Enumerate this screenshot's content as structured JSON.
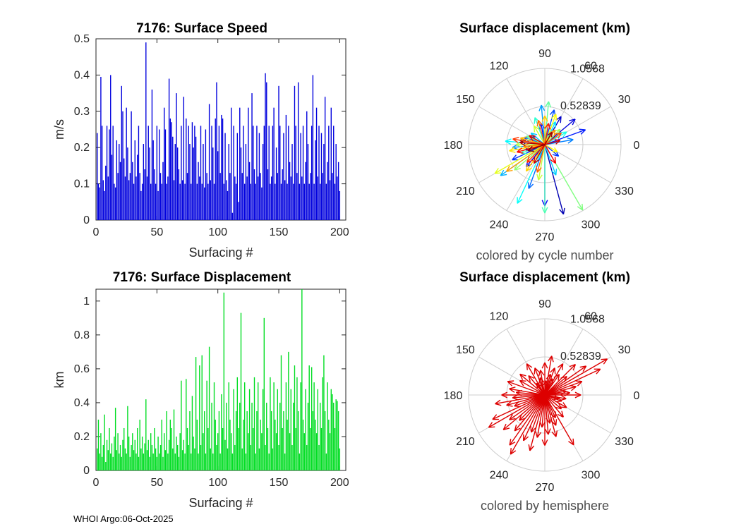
{
  "figure": {
    "background": "#ffffff"
  },
  "footer": {
    "text": "WHOI Argo:06-Oct-2025"
  },
  "chart_data": [
    {
      "type": "bar",
      "title": "7176: Surface Speed",
      "xlabel": "Surfacing #",
      "ylabel": "m/s",
      "bar_color": "#0000dd",
      "xlim": [
        0,
        205
      ],
      "ylim": [
        0,
        0.5
      ],
      "xticks": [
        0,
        50,
        100,
        150,
        200
      ],
      "yticks": [
        0,
        0.1,
        0.2,
        0.3,
        0.4,
        0.5
      ],
      "grid": false,
      "values": [
        0.24,
        0.1,
        0.09,
        0.395,
        0.26,
        0.11,
        0.08,
        0.15,
        0.26,
        0.12,
        0.25,
        0.4,
        0.18,
        0.26,
        0.1,
        0.09,
        0.22,
        0.13,
        0.21,
        0.16,
        0.37,
        0.3,
        0.17,
        0.12,
        0.31,
        0.2,
        0.11,
        0.13,
        0.3,
        0.16,
        0.1,
        0.22,
        0.12,
        0.18,
        0.26,
        0.13,
        0.08,
        0.1,
        0.21,
        0.14,
        0.49,
        0.12,
        0.26,
        0.2,
        0.1,
        0.36,
        0.22,
        0.14,
        0.1,
        0.26,
        0.08,
        0.25,
        0.13,
        0.1,
        0.16,
        0.31,
        0.25,
        0.1,
        0.12,
        0.39,
        0.28,
        0.27,
        0.23,
        0.11,
        0.21,
        0.35,
        0.2,
        0.14,
        0.1,
        0.26,
        0.11,
        0.34,
        0.1,
        0.28,
        0.13,
        0.26,
        0.21,
        0.1,
        0.27,
        0.2,
        0.26,
        0.23,
        0.1,
        0.16,
        0.12,
        0.26,
        0.1,
        0.21,
        0.09,
        0.25,
        0.13,
        0.1,
        0.32,
        0.11,
        0.26,
        0.2,
        0.1,
        0.28,
        0.38,
        0.19,
        0.26,
        0.13,
        0.29,
        0.28,
        0.1,
        0.24,
        0.11,
        0.08,
        0.21,
        0.13,
        0.31,
        0.02,
        0.26,
        0.12,
        0.1,
        0.24,
        0.05,
        0.31,
        0.2,
        0.13,
        0.26,
        0.1,
        0.21,
        0.12,
        0.31,
        0.16,
        0.1,
        0.35,
        0.26,
        0.14,
        0.1,
        0.26,
        0.12,
        0.24,
        0.13,
        0.09,
        0.21,
        0.26,
        0.405,
        0.38,
        0.14,
        0.26,
        0.1,
        0.12,
        0.26,
        0.31,
        0.1,
        0.2,
        0.13,
        0.37,
        0.26,
        0.1,
        0.14,
        0.24,
        0.11,
        0.29,
        0.1,
        0.26,
        0.16,
        0.12,
        0.21,
        0.1,
        0.37,
        0.26,
        0.13,
        0.38,
        0.1,
        0.24,
        0.12,
        0.26,
        0.1,
        0.16,
        0.3,
        0.21,
        0.1,
        0.13,
        0.26,
        0.4,
        0.1,
        0.22,
        0.31,
        0.12,
        0.26,
        0.1,
        0.24,
        0.13,
        0.21,
        0.34,
        0.1,
        0.16,
        0.26,
        0.11,
        0.31,
        0.13,
        0.26,
        0.1,
        0.21,
        0.12,
        0.16,
        0.08
      ]
    },
    {
      "type": "polar-quiver",
      "title": "Surface displacement (km)",
      "caption": "colored by cycle number",
      "colormap": "jet",
      "rmax": 1.0568,
      "rticks": [
        0.52839,
        1.0568
      ],
      "rtick_labels": [
        "0.52839",
        "1.0568"
      ],
      "angle_ticks": [
        0,
        30,
        60,
        90,
        120,
        150,
        180,
        210,
        240,
        270,
        300,
        330
      ],
      "arrows": [
        {
          "t": 0.0,
          "a": 170,
          "r": 0.35
        },
        {
          "t": 0.02,
          "a": 195,
          "r": 0.28
        },
        {
          "t": 0.04,
          "a": 150,
          "r": 0.22
        },
        {
          "t": 0.05,
          "a": 285,
          "r": 1.0
        },
        {
          "t": 0.07,
          "a": 60,
          "r": 0.45
        },
        {
          "t": 0.09,
          "a": 40,
          "r": 0.55
        },
        {
          "t": 0.1,
          "a": 230,
          "r": 0.4
        },
        {
          "t": 0.12,
          "a": 270,
          "r": 0.85
        },
        {
          "t": 0.13,
          "a": 100,
          "r": 0.3
        },
        {
          "t": 0.15,
          "a": 20,
          "r": 0.6
        },
        {
          "t": 0.17,
          "a": 205,
          "r": 0.5
        },
        {
          "t": 0.18,
          "a": 320,
          "r": 0.25
        },
        {
          "t": 0.2,
          "a": 75,
          "r": 0.5
        },
        {
          "t": 0.22,
          "a": 160,
          "r": 0.3
        },
        {
          "t": 0.23,
          "a": 250,
          "r": 0.65
        },
        {
          "t": 0.25,
          "a": 10,
          "r": 0.4
        },
        {
          "t": 0.27,
          "a": 185,
          "r": 0.45
        },
        {
          "t": 0.28,
          "a": 95,
          "r": 0.55
        },
        {
          "t": 0.3,
          "a": 215,
          "r": 0.75
        },
        {
          "t": 0.32,
          "a": 140,
          "r": 0.25
        },
        {
          "t": 0.33,
          "a": 290,
          "r": 0.45
        },
        {
          "t": 0.35,
          "a": 65,
          "r": 0.35
        },
        {
          "t": 0.37,
          "a": 175,
          "r": 0.55
        },
        {
          "t": 0.38,
          "a": 245,
          "r": 0.9
        },
        {
          "t": 0.4,
          "a": 30,
          "r": 0.35
        },
        {
          "t": 0.42,
          "a": 110,
          "r": 0.4
        },
        {
          "t": 0.43,
          "a": 200,
          "r": 0.35
        },
        {
          "t": 0.45,
          "a": 270,
          "r": 0.95
        },
        {
          "t": 0.47,
          "a": 85,
          "r": 0.6
        },
        {
          "t": 0.48,
          "a": 155,
          "r": 0.28
        },
        {
          "t": 0.5,
          "a": 300,
          "r": 1.05
        },
        {
          "t": 0.52,
          "a": 220,
          "r": 0.55
        },
        {
          "t": 0.53,
          "a": 45,
          "r": 0.3
        },
        {
          "t": 0.55,
          "a": 180,
          "r": 0.4
        },
        {
          "t": 0.57,
          "a": 260,
          "r": 0.5
        },
        {
          "t": 0.58,
          "a": 120,
          "r": 0.3
        },
        {
          "t": 0.6,
          "a": 210,
          "r": 0.8
        },
        {
          "t": 0.62,
          "a": 70,
          "r": 0.45
        },
        {
          "t": 0.63,
          "a": 330,
          "r": 0.2
        },
        {
          "t": 0.65,
          "a": 190,
          "r": 0.5
        },
        {
          "t": 0.67,
          "a": 235,
          "r": 0.45
        },
        {
          "t": 0.68,
          "a": 90,
          "r": 0.4
        },
        {
          "t": 0.7,
          "a": 165,
          "r": 0.35
        },
        {
          "t": 0.72,
          "a": 215,
          "r": 0.65
        },
        {
          "t": 0.73,
          "a": 55,
          "r": 0.25
        },
        {
          "t": 0.75,
          "a": 185,
          "r": 0.3
        },
        {
          "t": 0.77,
          "a": 105,
          "r": 0.35
        },
        {
          "t": 0.78,
          "a": 255,
          "r": 0.4
        },
        {
          "t": 0.8,
          "a": 35,
          "r": 0.28
        },
        {
          "t": 0.82,
          "a": 170,
          "r": 0.45
        },
        {
          "t": 0.83,
          "a": 225,
          "r": 0.35
        },
        {
          "t": 0.85,
          "a": 80,
          "r": 0.3
        },
        {
          "t": 0.87,
          "a": 195,
          "r": 0.4
        },
        {
          "t": 0.88,
          "a": 300,
          "r": 0.3
        },
        {
          "t": 0.9,
          "a": 150,
          "r": 0.25
        },
        {
          "t": 0.92,
          "a": 15,
          "r": 0.22
        },
        {
          "t": 0.93,
          "a": 240,
          "r": 0.3
        },
        {
          "t": 0.95,
          "a": 175,
          "r": 0.35
        },
        {
          "t": 0.97,
          "a": 60,
          "r": 0.2
        },
        {
          "t": 1.0,
          "a": 200,
          "r": 0.25
        }
      ]
    },
    {
      "type": "bar",
      "title": "7176: Surface Displacement",
      "xlabel": "Surfacing #",
      "ylabel": "km",
      "bar_color": "#00dd22",
      "xlim": [
        0,
        205
      ],
      "ylim": [
        0,
        1.07
      ],
      "xticks": [
        0,
        50,
        100,
        150,
        200
      ],
      "yticks": [
        0,
        0.2,
        0.4,
        0.6,
        0.8,
        1
      ],
      "grid": false,
      "values": [
        0.13,
        0.3,
        0.1,
        0.22,
        0.08,
        0.15,
        0.33,
        0.05,
        0.18,
        0.12,
        0.25,
        0.1,
        0.16,
        0.08,
        0.2,
        0.37,
        0.12,
        0.22,
        0.1,
        0.15,
        0.08,
        0.18,
        0.25,
        0.13,
        0.1,
        0.38,
        0.2,
        0.08,
        0.15,
        0.22,
        0.12,
        0.18,
        0.1,
        0.25,
        0.08,
        0.3,
        0.13,
        0.2,
        0.1,
        0.16,
        0.42,
        0.12,
        0.18,
        0.08,
        0.22,
        0.15,
        0.1,
        0.25,
        0.13,
        0.08,
        0.2,
        0.1,
        0.15,
        0.3,
        0.08,
        0.22,
        0.12,
        0.35,
        0.1,
        0.18,
        0.3,
        0.25,
        0.13,
        0.36,
        0.1,
        0.2,
        0.15,
        0.08,
        0.22,
        0.53,
        0.12,
        0.18,
        0.1,
        0.54,
        0.25,
        0.15,
        0.35,
        0.1,
        0.44,
        0.2,
        0.13,
        0.67,
        0.3,
        0.1,
        0.62,
        0.15,
        0.68,
        0.22,
        0.35,
        0.1,
        0.53,
        0.25,
        0.73,
        0.13,
        0.4,
        0.1,
        0.52,
        0.3,
        0.15,
        0.22,
        0.35,
        0.1,
        0.45,
        0.25,
        1.05,
        0.18,
        0.4,
        0.13,
        0.52,
        0.3,
        0.22,
        0.1,
        0.48,
        0.15,
        0.35,
        0.55,
        0.25,
        0.4,
        0.93,
        0.13,
        0.3,
        0.52,
        0.1,
        0.35,
        0.22,
        0.48,
        0.15,
        0.4,
        0.25,
        0.55,
        0.1,
        0.35,
        0.52,
        0.13,
        0.3,
        0.22,
        0.48,
        0.9,
        0.15,
        0.4,
        0.25,
        0.1,
        0.55,
        0.35,
        0.13,
        0.52,
        0.3,
        0.22,
        0.48,
        0.15,
        0.4,
        0.68,
        0.25,
        0.35,
        0.1,
        0.52,
        0.3,
        0.7,
        0.22,
        0.48,
        0.15,
        0.4,
        0.62,
        0.25,
        0.55,
        0.35,
        0.1,
        0.52,
        1.07,
        0.3,
        0.22,
        0.48,
        0.15,
        0.4,
        0.62,
        0.25,
        0.61,
        0.35,
        0.52,
        0.3,
        0.22,
        0.48,
        0.15,
        0.4,
        0.25,
        0.55,
        0.68,
        0.35,
        0.1,
        0.52,
        0.3,
        0.22,
        0.48,
        0.45,
        0.4,
        0.25,
        0.42,
        0.41,
        0.35,
        0.13
      ]
    },
    {
      "type": "polar-quiver",
      "title": "Surface displacement (km)",
      "caption": "colored by hemisphere",
      "arrow_color": "#dd0000",
      "rmax": 1.0568,
      "rticks": [
        0.52839,
        1.0568
      ],
      "rtick_labels": [
        "0.52839",
        "1.0568"
      ],
      "angle_ticks": [
        0,
        30,
        60,
        90,
        120,
        150,
        180,
        210,
        240,
        270,
        300,
        330
      ],
      "arrows": [
        {
          "a": 30,
          "r": 1.0
        },
        {
          "a": 25,
          "r": 0.85
        },
        {
          "a": 35,
          "r": 0.7
        },
        {
          "a": 20,
          "r": 0.55
        },
        {
          "a": 45,
          "r": 0.6
        },
        {
          "a": 15,
          "r": 0.45
        },
        {
          "a": 40,
          "r": 0.4
        },
        {
          "a": 55,
          "r": 0.35
        },
        {
          "a": 10,
          "r": 0.3
        },
        {
          "a": 60,
          "r": 0.5
        },
        {
          "a": 70,
          "r": 0.4
        },
        {
          "a": 80,
          "r": 0.55
        },
        {
          "a": 90,
          "r": 0.45
        },
        {
          "a": 75,
          "r": 0.3
        },
        {
          "a": 100,
          "r": 0.35
        },
        {
          "a": 110,
          "r": 0.4
        },
        {
          "a": 120,
          "r": 0.5
        },
        {
          "a": 130,
          "r": 0.35
        },
        {
          "a": 140,
          "r": 0.45
        },
        {
          "a": 150,
          "r": 0.4
        },
        {
          "a": 160,
          "r": 0.55
        },
        {
          "a": 170,
          "r": 0.5
        },
        {
          "a": 180,
          "r": 0.6
        },
        {
          "a": 175,
          "r": 0.4
        },
        {
          "a": 185,
          "r": 0.45
        },
        {
          "a": 190,
          "r": 0.7
        },
        {
          "a": 195,
          "r": 0.55
        },
        {
          "a": 200,
          "r": 0.45
        },
        {
          "a": 205,
          "r": 0.8
        },
        {
          "a": 210,
          "r": 0.9
        },
        {
          "a": 215,
          "r": 0.6
        },
        {
          "a": 220,
          "r": 0.75
        },
        {
          "a": 225,
          "r": 0.5
        },
        {
          "a": 230,
          "r": 0.65
        },
        {
          "a": 235,
          "r": 0.85
        },
        {
          "a": 240,
          "r": 0.95
        },
        {
          "a": 245,
          "r": 0.7
        },
        {
          "a": 250,
          "r": 0.55
        },
        {
          "a": 255,
          "r": 0.8
        },
        {
          "a": 260,
          "r": 0.6
        },
        {
          "a": 265,
          "r": 0.45
        },
        {
          "a": 270,
          "r": 0.7
        },
        {
          "a": 275,
          "r": 0.55
        },
        {
          "a": 280,
          "r": 0.4
        },
        {
          "a": 285,
          "r": 0.6
        },
        {
          "a": 290,
          "r": 0.45
        },
        {
          "a": 295,
          "r": 0.35
        },
        {
          "a": 300,
          "r": 0.8
        },
        {
          "a": 310,
          "r": 0.4
        },
        {
          "a": 320,
          "r": 0.3
        },
        {
          "a": 330,
          "r": 0.35
        },
        {
          "a": 340,
          "r": 0.25
        },
        {
          "a": 350,
          "r": 0.3
        },
        {
          "a": 5,
          "r": 0.35
        },
        {
          "a": 0,
          "r": 0.5
        },
        {
          "a": 345,
          "r": 0.2
        },
        {
          "a": 65,
          "r": 0.25
        },
        {
          "a": 85,
          "r": 0.2
        },
        {
          "a": 105,
          "r": 0.25
        },
        {
          "a": 125,
          "r": 0.2
        }
      ]
    }
  ]
}
